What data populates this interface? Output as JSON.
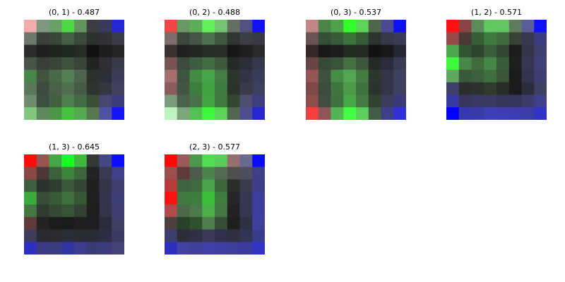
{
  "chart_data": {
    "type": "heatmap",
    "grid": false,
    "panels": [
      {
        "title": "(0, 1) - 0.487",
        "cells": [
          [
            "#f1acac",
            "#81967f",
            "#6a9f67",
            "#4bda45",
            "#64935f",
            "#3c3c41",
            "#39395d",
            "#2626d6"
          ],
          [
            "#6d786d",
            "#393f39",
            "#3b463a",
            "#465f46",
            "#3a4a3a",
            "#2e302e",
            "#323136",
            "#3c3c49"
          ],
          [
            "#2b2c2b",
            "#1f1f1f",
            "#212321",
            "#212821",
            "#272b27",
            "#121212",
            "#1d1d1d",
            "#232423"
          ],
          [
            "#49534a",
            "#373f37",
            "#394539",
            "#3e523e",
            "#394539",
            "#222422",
            "#2e2e34",
            "#39394a"
          ],
          [
            "#4a854a",
            "#42533f",
            "#496848",
            "#567f55",
            "#4c644c",
            "#2c312c",
            "#2e2e3a",
            "#3c3c56"
          ],
          [
            "#5a775b",
            "#3f4b3f",
            "#495f49",
            "#4f6f4f",
            "#465b46",
            "#2f332f",
            "#36363e",
            "#41415b"
          ],
          [
            "#6f8a6f",
            "#3e4f3f",
            "#406040",
            "#508050",
            "#446c44",
            "#3a4e3a",
            "#464670",
            "#3c3c7c"
          ],
          [
            "#82c67f",
            "#60875f",
            "#4c9448",
            "#46c140",
            "#58a753",
            "#55784f",
            "#5151a4",
            "#1414f6"
          ]
        ]
      },
      {
        "title": "(0, 2) - 0.488",
        "cells": [
          [
            "#f24545",
            "#699866",
            "#5dae5a",
            "#62f05c",
            "#76c472",
            "#646f63",
            "#51517f",
            "#1111f9"
          ],
          [
            "#7e6b6c",
            "#3b473b",
            "#465646",
            "#4e704e",
            "#3f573f",
            "#313432",
            "#3d3d45",
            "#393946"
          ],
          [
            "#393232",
            "#202020",
            "#232523",
            "#252c25",
            "#292e29",
            "#171717",
            "#1e1e1e",
            "#2a2a2a"
          ],
          [
            "#785353",
            "#3f4a3f",
            "#3e5c3e",
            "#446c44",
            "#3e593e",
            "#262926",
            "#2e2e3b",
            "#36364d"
          ],
          [
            "#a46e6e",
            "#3e543e",
            "#438a43",
            "#49a549",
            "#457c45",
            "#2b362b",
            "#333345",
            "#3a3a5a"
          ],
          [
            "#8a5c5c",
            "#435643",
            "#3c7e3c",
            "#42a142",
            "#3f7a3f",
            "#2b342b",
            "#393949",
            "#3e3e5f"
          ],
          [
            "#7b9a7b",
            "#4c614c",
            "#497149",
            "#45a345",
            "#417a41",
            "#334733",
            "#4e4e6f",
            "#3e3e7d"
          ],
          [
            "#bdf4bd",
            "#7ea47e",
            "#55c155",
            "#3ef83e",
            "#5bd35b",
            "#526652",
            "#4e4e8f",
            "#2727d1"
          ]
        ]
      },
      {
        "title": "(0, 3) - 0.537",
        "cells": [
          [
            "#c28686",
            "#4b8549",
            "#4fa24b",
            "#33ff2c",
            "#5ed45a",
            "#4f664b",
            "#4a4a94",
            "#0f0ff4"
          ],
          [
            "#6a5353",
            "#364e36",
            "#395a39",
            "#3b743b",
            "#355b35",
            "#2d342d",
            "#37374a",
            "#3b3b56"
          ],
          [
            "#342828",
            "#181818",
            "#1d1d1d",
            "#222a22",
            "#242924",
            "#121212",
            "#181818",
            "#262633"
          ],
          [
            "#6a4545",
            "#374937",
            "#3a543a",
            "#447044",
            "#3c583c",
            "#262a26",
            "#2b2b3c",
            "#3a3a52"
          ],
          [
            "#975454",
            "#3e513e",
            "#468b46",
            "#53a553",
            "#437b43",
            "#2d362d",
            "#333349",
            "#3f3f5f"
          ],
          [
            "#7f4848",
            "#3c4b3c",
            "#3f753f",
            "#4a9b4a",
            "#3f723f",
            "#2c322c",
            "#353548",
            "#3e3e5f"
          ],
          [
            "#8f4d4d",
            "#404c40",
            "#417141",
            "#49a649",
            "#457a45",
            "#314231",
            "#3c3c5d",
            "#3a3a7a"
          ],
          [
            "#f63e3e",
            "#8e5656",
            "#53b453",
            "#45fc45",
            "#5ece5e",
            "#445b44",
            "#3f3f88",
            "#3030d6"
          ]
        ]
      },
      {
        "title": "(1, 2) - 0.571",
        "cells": [
          [
            "#ff1010",
            "#8a4343",
            "#5d8b5d",
            "#5fc85f",
            "#65c665",
            "#5e7b5e",
            "#5c5c98",
            "#1010ff"
          ],
          [
            "#984848",
            "#4c3838",
            "#385e38",
            "#3f7b3f",
            "#3f6a3f",
            "#394239",
            "#373750",
            "#3c3c7c"
          ],
          [
            "#4ea64e",
            "#325332",
            "#2e442e",
            "#3d5e3d",
            "#344734",
            "#1c1c1c",
            "#353548",
            "#3f3f6f"
          ],
          [
            "#3ef83e",
            "#478847",
            "#3f6b3f",
            "#458745",
            "#3b5c3b",
            "#1e1e1e",
            "#363652",
            "#404078"
          ],
          [
            "#60a660",
            "#3a583a",
            "#3d5f3d",
            "#3f6f3f",
            "#3a543a",
            "#1b1b1b",
            "#333350",
            "#3d3d72"
          ],
          [
            "#3f3f6a",
            "#2c2c2c",
            "#2e3030",
            "#303b30",
            "#282c28",
            "#1b1b1e",
            "#2c2c3a",
            "#3f3f60"
          ],
          [
            "#3838a2",
            "#36365f",
            "#393964",
            "#3a3a62",
            "#353559",
            "#34345c",
            "#3b3b6c",
            "#40408a"
          ],
          [
            "#0000ff",
            "#3737ae",
            "#3a3aa6",
            "#3e3eb6",
            "#3e3eb0",
            "#3c3caf",
            "#3c3ca6",
            "#3232c6"
          ]
        ]
      },
      {
        "title": "(1, 3) - 0.645",
        "cells": [
          [
            "#ff0c0c",
            "#9a5252",
            "#46a546",
            "#19ff19",
            "#40b840",
            "#343834",
            "#464685",
            "#0c0cff"
          ],
          [
            "#8b4646",
            "#4c3636",
            "#3c603c",
            "#3c843c",
            "#3b663b",
            "#222222",
            "#393952",
            "#40408a"
          ],
          [
            "#3f5e3f",
            "#2c332c",
            "#303b30",
            "#3c583c",
            "#344634",
            "#1f1f1f",
            "#343448",
            "#3f3f6f"
          ],
          [
            "#3ea93e",
            "#384d38",
            "#375a37",
            "#3f703f",
            "#365636",
            "#202020",
            "#34344d",
            "#3e3e77"
          ],
          [
            "#437843",
            "#303a30",
            "#364736",
            "#375237",
            "#323f32",
            "#1e1e1e",
            "#333349",
            "#3e3e71"
          ],
          [
            "#5e3a3a",
            "#232323",
            "#1c1c1c",
            "#1b1b1b",
            "#1f1f1f",
            "#1e1e22",
            "#2b2b3a",
            "#3f3f63"
          ],
          [
            "#3d3d5b",
            "#29292e",
            "#2a2a2f",
            "#2d2d38",
            "#2b2b33",
            "#2b2b36",
            "#2d2d46",
            "#3a3a62"
          ],
          [
            "#2f2fbf",
            "#3b3b82",
            "#3b3b7d",
            "#3434a4",
            "#3d3d8b",
            "#3a3a76",
            "#3b3b79",
            "#424277"
          ]
        ]
      },
      {
        "title": "(2, 3) - 0.577",
        "cells": [
          [
            "#ff0808",
            "#9a5a5a",
            "#4e984e",
            "#52dc52",
            "#5acc5a",
            "#957070",
            "#6a6a91",
            "#0a0aff"
          ],
          [
            "#9b4e4e",
            "#5f3a3a",
            "#4d5a4d",
            "#4c824c",
            "#546954",
            "#4f4f50",
            "#4e4e5c",
            "#3f3f86"
          ],
          [
            "#b93a3a",
            "#3f623f",
            "#3f693f",
            "#4aa34a",
            "#3c673c",
            "#2b2d2b",
            "#3a3a4c",
            "#3e3e86"
          ],
          [
            "#ff1111",
            "#407a40",
            "#3d7d3d",
            "#3bbf3b",
            "#3f7d3f",
            "#252625",
            "#363653",
            "#3d3d9c"
          ],
          [
            "#b04b4b",
            "#4d674d",
            "#4b794b",
            "#4aae4a",
            "#447744",
            "#212221",
            "#363652",
            "#3d3d9e"
          ],
          [
            "#4d3f3f",
            "#2b402b",
            "#2d502d",
            "#4e7d4e",
            "#364d36",
            "#1e1e1e",
            "#303044",
            "#3e3e9b"
          ],
          [
            "#3d3d6d",
            "#2d2d3a",
            "#303045",
            "#3a3a56",
            "#30304a",
            "#2f2f42",
            "#333356",
            "#3b3b8c"
          ],
          [
            "#2e2ebc",
            "#4242a3",
            "#40409b",
            "#4040a6",
            "#3e3ea2",
            "#3c3c99",
            "#3b3b9c",
            "#3434c4"
          ]
        ]
      }
    ]
  }
}
